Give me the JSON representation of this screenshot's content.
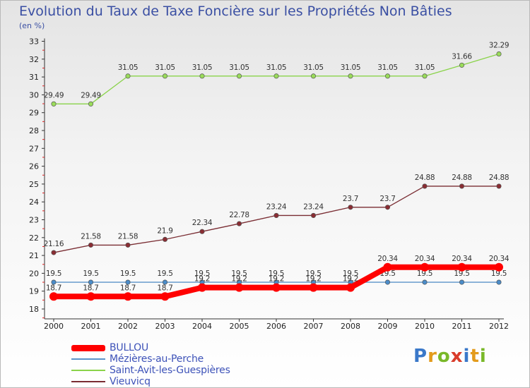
{
  "title": "Evolution du Taux de Taxe Foncière sur les Propriétés Non Bâties",
  "unit_label": "(en %)",
  "logo": {
    "letters": [
      "P",
      "r",
      "o",
      "x",
      "i",
      "t",
      "i"
    ],
    "colors": [
      "#3a78c9",
      "#e39b1c",
      "#79b829",
      "#d93c2b",
      "#3a78c9",
      "#e39b1c",
      "#79b829"
    ]
  },
  "chart_data": {
    "type": "line",
    "x": [
      "2000",
      "2001",
      "2002",
      "2003",
      "2004",
      "2005",
      "2006",
      "2007",
      "2008",
      "2009",
      "2010",
      "2011",
      "2012"
    ],
    "ylim": [
      18,
      33
    ],
    "yticks": [
      "18",
      "19",
      "20",
      "21",
      "22",
      "23",
      "24",
      "25",
      "26",
      "27",
      "28",
      "29",
      "30",
      "31",
      "32",
      "33"
    ],
    "grid": false,
    "legend_position": "bottom-left",
    "series": [
      {
        "name": "BULLOU",
        "color": "#ff0000",
        "style": "thick",
        "values": [
          18.7,
          18.7,
          18.7,
          18.7,
          19.2,
          19.2,
          19.2,
          19.2,
          19.2,
          20.34,
          20.34,
          20.34,
          20.34
        ],
        "labels": [
          "18.7",
          "18.7",
          "18.7",
          "18.7",
          "19.2",
          "19.2",
          "19.2",
          "19.2",
          "19.2",
          "20.34",
          "20.34",
          "20.34",
          "20.34"
        ]
      },
      {
        "name": "Mézières-au-Perche",
        "color": "#5b93c9",
        "style": "thin",
        "values": [
          19.5,
          19.5,
          19.5,
          19.5,
          19.5,
          19.5,
          19.5,
          19.5,
          19.5,
          19.5,
          19.5,
          19.5,
          19.5
        ],
        "labels": [
          "19.5",
          "19.5",
          "19.5",
          "19.5",
          "19.5",
          "19.5",
          "19.5",
          "19.5",
          "19.5",
          "19.5",
          "19.5",
          "19.5",
          "19.5"
        ]
      },
      {
        "name": "Saint-Avit-les-Guespières",
        "color": "#8ad34a",
        "style": "thin",
        "values": [
          29.49,
          29.49,
          31.05,
          31.05,
          31.05,
          31.05,
          31.05,
          31.05,
          31.05,
          31.05,
          31.05,
          31.66,
          32.29
        ],
        "labels": [
          "29.49",
          "29.49",
          "31.05",
          "31.05",
          "31.05",
          "31.05",
          "31.05",
          "31.05",
          "31.05",
          "31.05",
          "31.05",
          "31.66",
          "32.29"
        ]
      },
      {
        "name": "Vieuvicq",
        "color": "#7a2d33",
        "style": "thin",
        "values": [
          21.16,
          21.58,
          21.58,
          21.9,
          22.34,
          22.78,
          23.24,
          23.24,
          23.7,
          23.7,
          24.88,
          24.88,
          24.88
        ],
        "labels": [
          "21.16",
          "21.58",
          "21.58",
          "21.9",
          "22.34",
          "22.78",
          "23.24",
          "23.24",
          "23.7",
          "23.7",
          "24.88",
          "24.88",
          "24.88"
        ]
      }
    ]
  }
}
